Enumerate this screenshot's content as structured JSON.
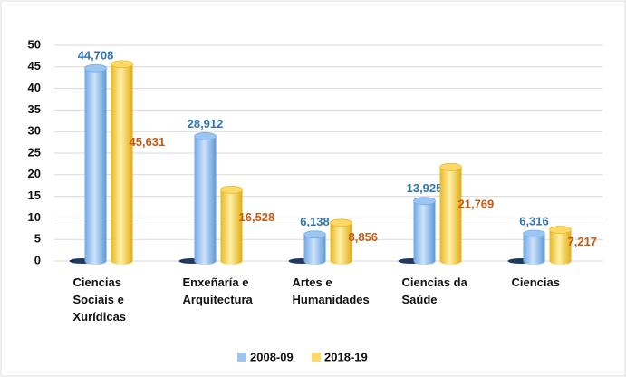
{
  "chart_data": {
    "type": "bar",
    "categories": [
      "Ciencias Sociais e Xurídicas",
      "Enxeñaría e Arquitectura",
      "Artes e Humanidades",
      "Ciencias da Saúde",
      "Ciencias"
    ],
    "series": [
      {
        "name": "2008-09",
        "color": "#9cc5f2",
        "label_color": "#2e75b6",
        "values": [
          44.708,
          28.912,
          6.138,
          13.925,
          6.316
        ],
        "value_labels": [
          "44,708",
          "28,912",
          "6,138",
          "13,925",
          "6,316"
        ]
      },
      {
        "name": "2018-19",
        "color": "#ffd966",
        "label_color": "#c55a11",
        "values": [
          45.631,
          16.528,
          8.856,
          21.769,
          7.217
        ],
        "value_labels": [
          "45,631",
          "16,528",
          "8,856",
          "21,769",
          "7,217"
        ]
      }
    ],
    "ylim": [
      0,
      50
    ],
    "yticks": [
      0,
      5,
      10,
      15,
      20,
      25,
      30,
      35,
      40,
      45,
      50
    ],
    "grid": true,
    "legend": "bottom"
  }
}
